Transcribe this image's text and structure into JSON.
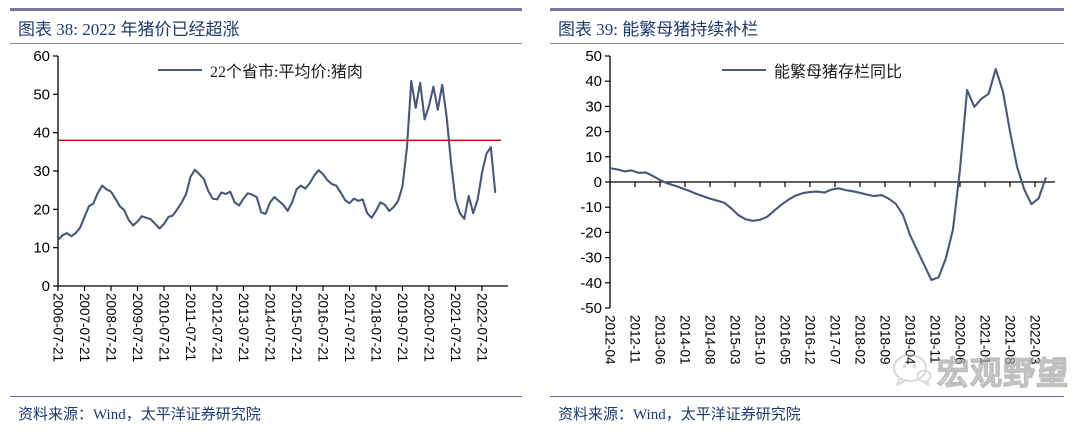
{
  "panels": [
    {
      "figure_title": "图表 38:  2022 年猪价已经超涨",
      "legend": "22个省市:平均价:猪肉",
      "source": "资料来源：Wind，太平洋证券研究院"
    },
    {
      "figure_title": "图表 39:  能繁母猪持续补栏",
      "legend": "能繁母猪存栏同比",
      "source": "资料来源：Wind，太平洋证券研究院"
    }
  ],
  "watermark": {
    "text": "宏观野望",
    "icon": "wechat-chat-bubble-icon"
  },
  "colors": {
    "line": "#48587a",
    "refline": "#c00000",
    "title_text": "#1d3a6d",
    "rule": "#7b78a8",
    "axis_text": "#000000",
    "watermark_gray": "#b5b5b5"
  },
  "chart_data": [
    {
      "type": "line",
      "title": "图表 38: 2022 年猪价已经超涨",
      "legend": [
        "22个省市:平均价:猪肉"
      ],
      "ylabel": "",
      "xlabel": "",
      "ylim": [
        0,
        60
      ],
      "yticks": [
        0,
        10,
        20,
        30,
        40,
        50,
        60
      ],
      "refline": 38,
      "refline_color": "#c00000",
      "line_color": "#48587a",
      "axis_at_zero": false,
      "x_start": "2006-07",
      "x_step_months": 2,
      "xtick_labels": [
        "2006-07-21",
        "2007-07-21",
        "2008-07-21",
        "2009-07-21",
        "2010-07-21",
        "2011-07-21",
        "2012-07-21",
        "2013-07-21",
        "2014-07-21",
        "2015-07-21",
        "2016-07-21",
        "2017-07-21",
        "2018-07-21",
        "2019-07-21",
        "2020-07-21",
        "2021-07-21",
        "2022-07-21"
      ],
      "values": [
        12.0,
        13.2,
        13.8,
        13.0,
        13.8,
        15.2,
        18.0,
        20.8,
        21.5,
        24.2,
        26.2,
        25.2,
        24.6,
        22.8,
        20.8,
        19.8,
        17.2,
        15.8,
        16.8,
        18.2,
        17.8,
        17.4,
        16.2,
        15.0,
        16.2,
        18.0,
        18.4,
        20.0,
        21.8,
        24.0,
        28.5,
        30.3,
        29.2,
        28.0,
        24.8,
        22.8,
        22.6,
        24.4,
        24.0,
        24.6,
        21.8,
        21.0,
        22.8,
        24.2,
        23.8,
        23.2,
        19.2,
        18.8,
        21.8,
        23.2,
        22.2,
        21.2,
        19.6,
        21.8,
        25.2,
        26.2,
        25.4,
        26.8,
        28.8,
        30.2,
        29.2,
        27.6,
        26.6,
        26.2,
        24.4,
        22.4,
        21.6,
        22.8,
        22.2,
        22.6,
        19.0,
        17.8,
        19.6,
        21.8,
        21.2,
        19.6,
        20.6,
        22.2,
        26.0,
        36.0,
        53.5,
        46.5,
        53.0,
        43.5,
        47.0,
        52.0,
        46.0,
        52.5,
        44.0,
        32.0,
        22.5,
        19.0,
        17.5,
        23.5,
        19.0,
        22.5,
        29.5,
        34.5,
        36.2,
        24.5
      ]
    },
    {
      "type": "line",
      "title": "图表 39: 能繁母猪持续补栏",
      "legend": [
        "能繁母猪存栏同比"
      ],
      "ylabel": "",
      "xlabel": "",
      "ylim": [
        -50,
        50
      ],
      "yticks": [
        -50,
        -40,
        -30,
        -20,
        -10,
        0,
        10,
        20,
        30,
        40,
        50
      ],
      "refline": null,
      "refline_color": "#c00000",
      "line_color": "#48587a",
      "axis_at_zero": true,
      "x_start": "2012-04",
      "x_step_months": 2,
      "xtick_labels": [
        "2012-04",
        "2012-11",
        "2013-06",
        "2014-01",
        "2014-08",
        "2015-03",
        "2015-10",
        "2016-05",
        "2016-12",
        "2017-07",
        "2018-02",
        "2018-09",
        "2019-04",
        "2019-11",
        "2020-06",
        "2021-01",
        "2021-08",
        "2022-03"
      ],
      "values": [
        5.5,
        5.0,
        4.2,
        4.6,
        3.6,
        3.8,
        2.4,
        0.8,
        -0.5,
        -1.4,
        -2.4,
        -3.4,
        -4.6,
        -5.6,
        -6.6,
        -7.4,
        -8.2,
        -10.5,
        -13.2,
        -14.8,
        -15.4,
        -15.0,
        -13.8,
        -11.4,
        -9.0,
        -7.0,
        -5.4,
        -4.4,
        -4.0,
        -3.8,
        -4.2,
        -3.0,
        -2.5,
        -3.2,
        -3.7,
        -4.3,
        -5.0,
        -5.6,
        -5.2,
        -6.6,
        -8.6,
        -13.0,
        -21.0,
        -27.0,
        -33.0,
        -38.9,
        -37.8,
        -30.5,
        -19.0,
        5.0,
        36.5,
        29.8,
        33.0,
        35.0,
        44.8,
        36.0,
        20.0,
        6.0,
        -3.0,
        -8.8,
        -6.5,
        1.5
      ]
    }
  ]
}
